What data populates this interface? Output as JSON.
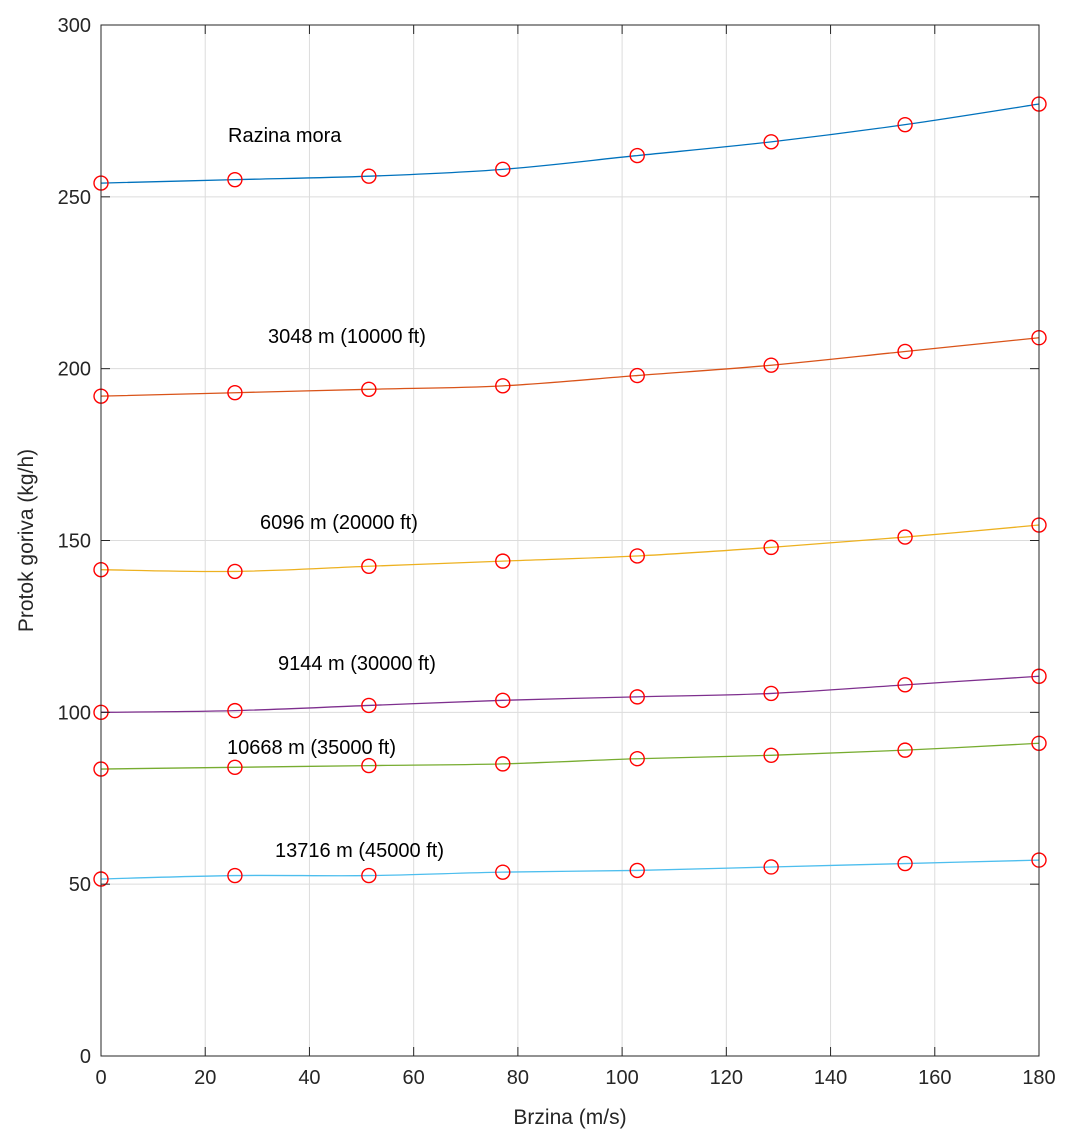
{
  "chart_data": {
    "type": "line",
    "title": "",
    "xlabel": "Brzina (m/s)",
    "ylabel": "Protok goriva (kg/h)",
    "xlim": [
      0,
      180
    ],
    "ylim": [
      0,
      300
    ],
    "xticks": [
      0,
      20,
      40,
      60,
      80,
      100,
      120,
      140,
      160,
      180
    ],
    "yticks": [
      0,
      50,
      100,
      150,
      200,
      250,
      300
    ],
    "grid": true,
    "marker": "circle",
    "marker_color": "#ff0000",
    "x": [
      0,
      25.7,
      51.4,
      77.1,
      102.9,
      128.6,
      154.3,
      180
    ],
    "series": [
      {
        "label": "Razina mora",
        "color": "#0072bd",
        "values": [
          254,
          255,
          256,
          258,
          262,
          266,
          271,
          277
        ]
      },
      {
        "label": "3048 m (10000 ft)",
        "color": "#d95319",
        "values": [
          192,
          193,
          194,
          195,
          198,
          201,
          205,
          209
        ]
      },
      {
        "label": "6096 m (20000 ft)",
        "color": "#edb120",
        "values": [
          141.5,
          141,
          142.5,
          144,
          145.5,
          148,
          151,
          154.5
        ]
      },
      {
        "label": "9144 m (30000 ft)",
        "color": "#7e2f8e",
        "values": [
          100,
          100.5,
          102,
          103.5,
          104.5,
          105.5,
          108,
          110.5
        ]
      },
      {
        "label": "10668 m (35000 ft)",
        "color": "#77ac30",
        "values": [
          83.5,
          84,
          84.5,
          85,
          86.5,
          87.5,
          89,
          91
        ]
      },
      {
        "label": "13716 m (45000 ft)",
        "color": "#4dbeee",
        "values": [
          51.5,
          52.5,
          52.5,
          53.5,
          54,
          55,
          56,
          57
        ]
      }
    ]
  }
}
